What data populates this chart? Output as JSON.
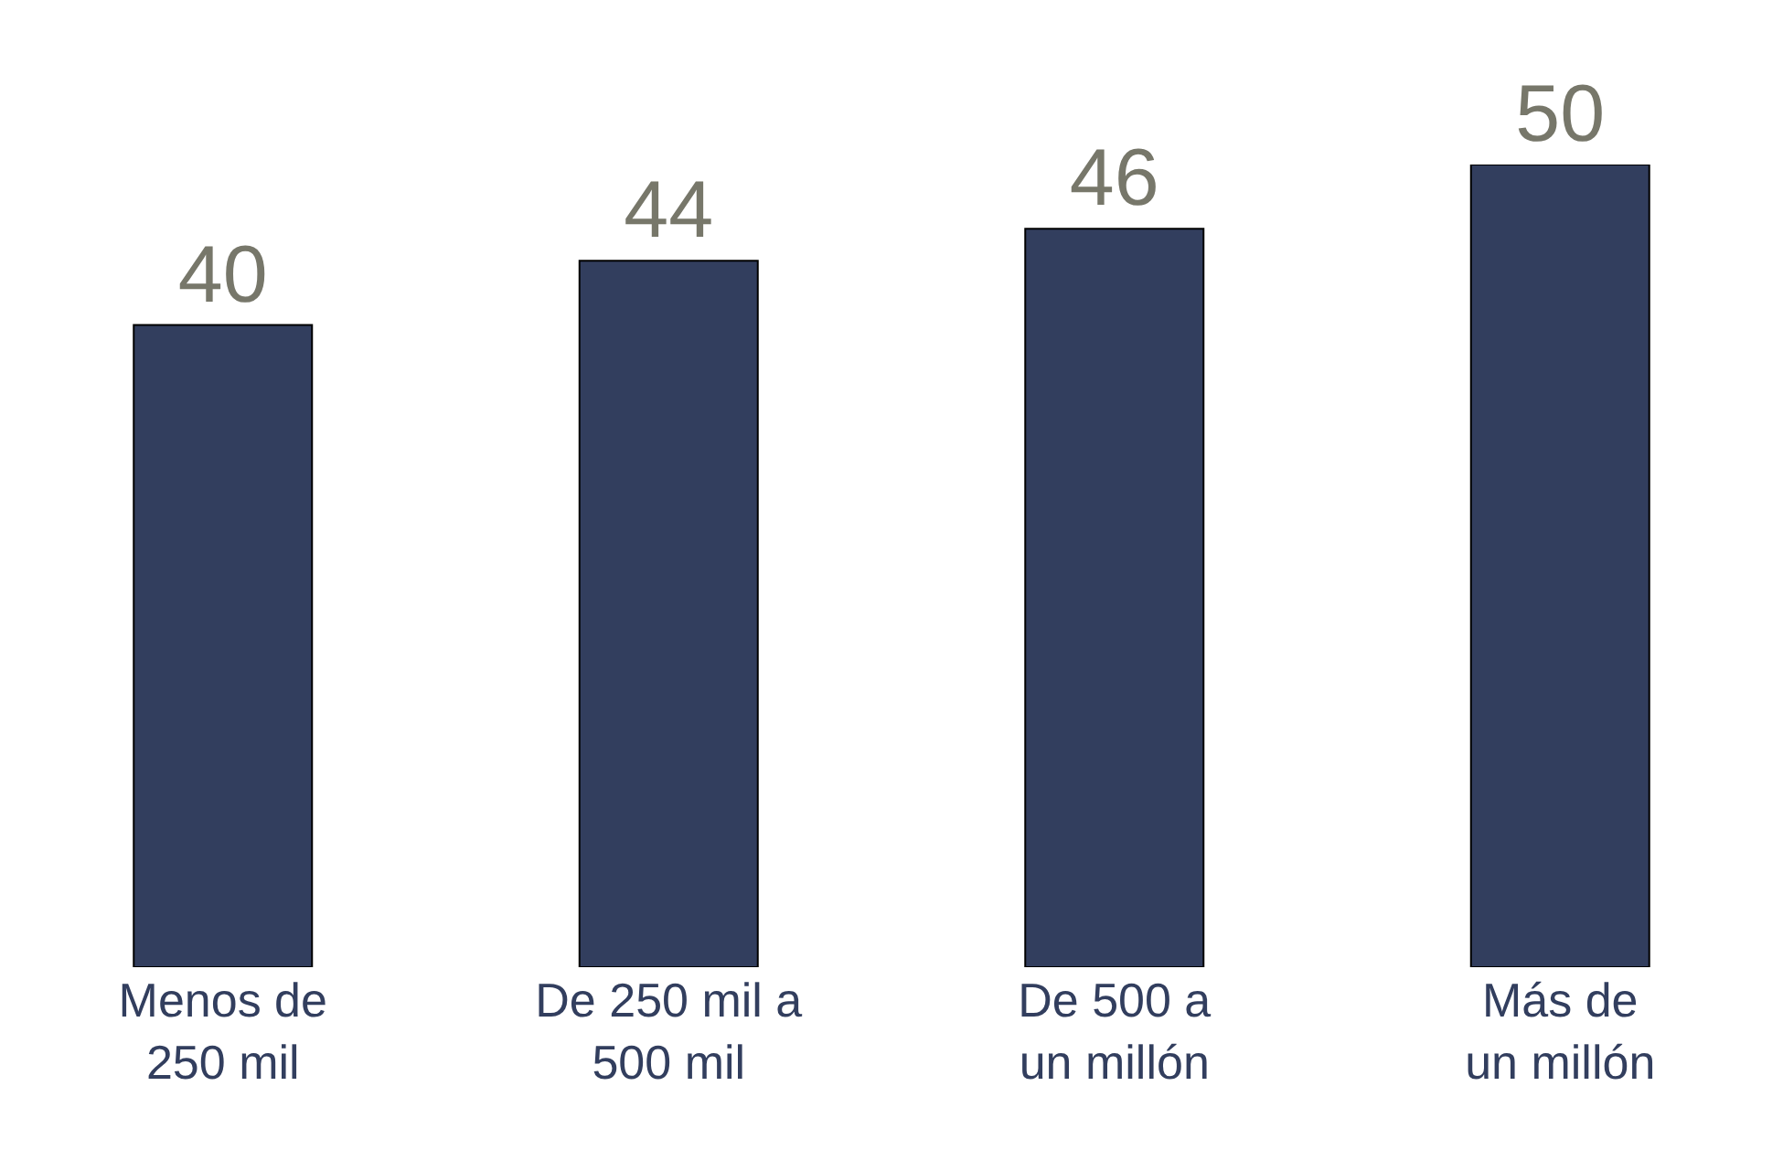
{
  "chart_data": {
    "type": "bar",
    "categories": [
      "Menos de 250 mil",
      "De 250 mil a 500 mil",
      "De 500 a un millón",
      "Más de un millón"
    ],
    "values": [
      40,
      44,
      46,
      50
    ],
    "color": "#323e5e",
    "data_labels": true
  }
}
